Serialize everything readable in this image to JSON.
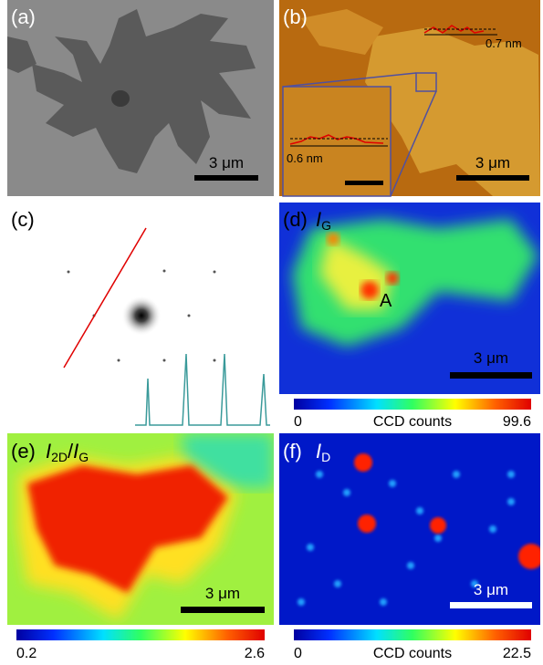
{
  "panels": [
    {
      "label": "(a)",
      "scale_bar": "3 μm"
    },
    {
      "label": "(b)",
      "scale_bar": "3 μm",
      "profile_height": "0.7 nm",
      "inset_profile_height": "0.6 nm"
    },
    {
      "label": "(c)"
    },
    {
      "label": "(d)",
      "title": [
        "I",
        "G"
      ],
      "annotation": "A",
      "scale_bar": "3 μm",
      "colorbar": {
        "min": "0",
        "label": "CCD counts",
        "max": "99.6"
      }
    },
    {
      "label": "(e)",
      "title": [
        "I",
        "2D",
        "/",
        "I",
        "G"
      ],
      "scale_bar": "3 μm",
      "colorbar": {
        "min": "0.2",
        "max": "2.6"
      }
    },
    {
      "label": "(f)",
      "title": [
        "I",
        "D"
      ],
      "scale_bar": "3 μm",
      "colorbar": {
        "min": "0",
        "label": "CCD counts",
        "max": "22.5"
      }
    }
  ]
}
